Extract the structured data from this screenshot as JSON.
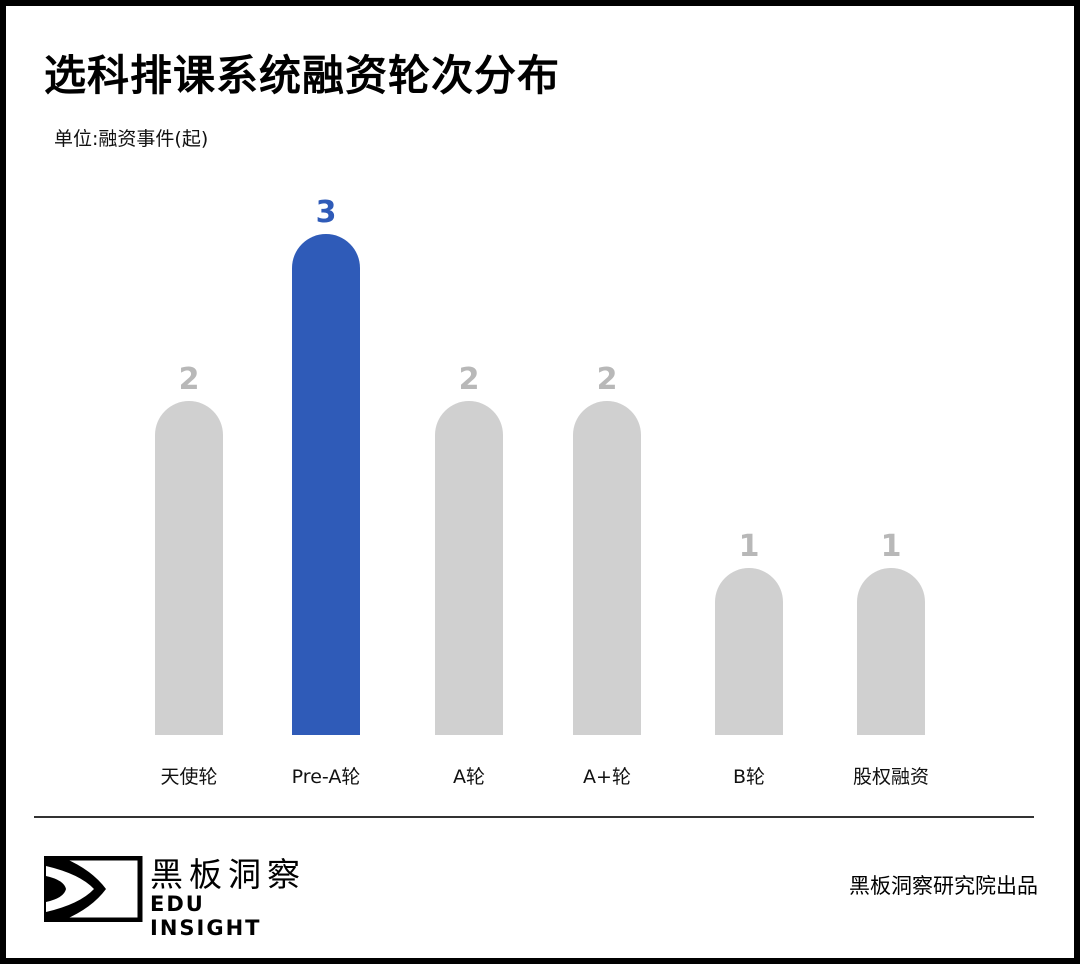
{
  "chart_data": {
    "type": "bar",
    "title": "选科排课系统融资轮次分布",
    "unit_label": "单位:融资事件(起)",
    "categories": [
      "天使轮",
      "Pre-A轮",
      "A轮",
      "A+轮",
      "B轮",
      "股权融资"
    ],
    "values": [
      2,
      3,
      2,
      2,
      1,
      1
    ],
    "highlight_index": 1,
    "ylim": [
      0,
      3
    ],
    "grid": false,
    "colors": {
      "bar": "#d0d0d0",
      "highlight": "#2f5bb8",
      "value_label": "#b8b8b8"
    }
  },
  "footer": {
    "logo_cn": "黑板洞察",
    "logo_en": "EDU INSIGHT",
    "credit": "黑板洞察研究院出品"
  }
}
